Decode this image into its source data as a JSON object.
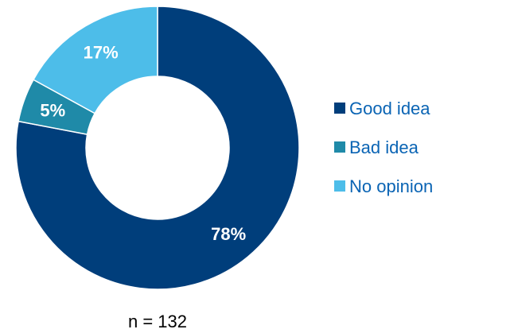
{
  "chart_data": {
    "type": "pie",
    "variant": "donut",
    "categories": [
      "Good idea",
      "Bad idea",
      "No opinion"
    ],
    "values": [
      78,
      5,
      17
    ],
    "value_labels": [
      "78%",
      "5%",
      "17%"
    ],
    "unit": "%",
    "colors": [
      "#003e7b",
      "#1f8aa8",
      "#4dbde9"
    ],
    "legend": {
      "position": "right",
      "entries": [
        "Good idea",
        "Bad idea",
        "No opinion"
      ],
      "text_color": "#0a64b4"
    },
    "annotations": {
      "sample_size": "n = 132"
    }
  }
}
